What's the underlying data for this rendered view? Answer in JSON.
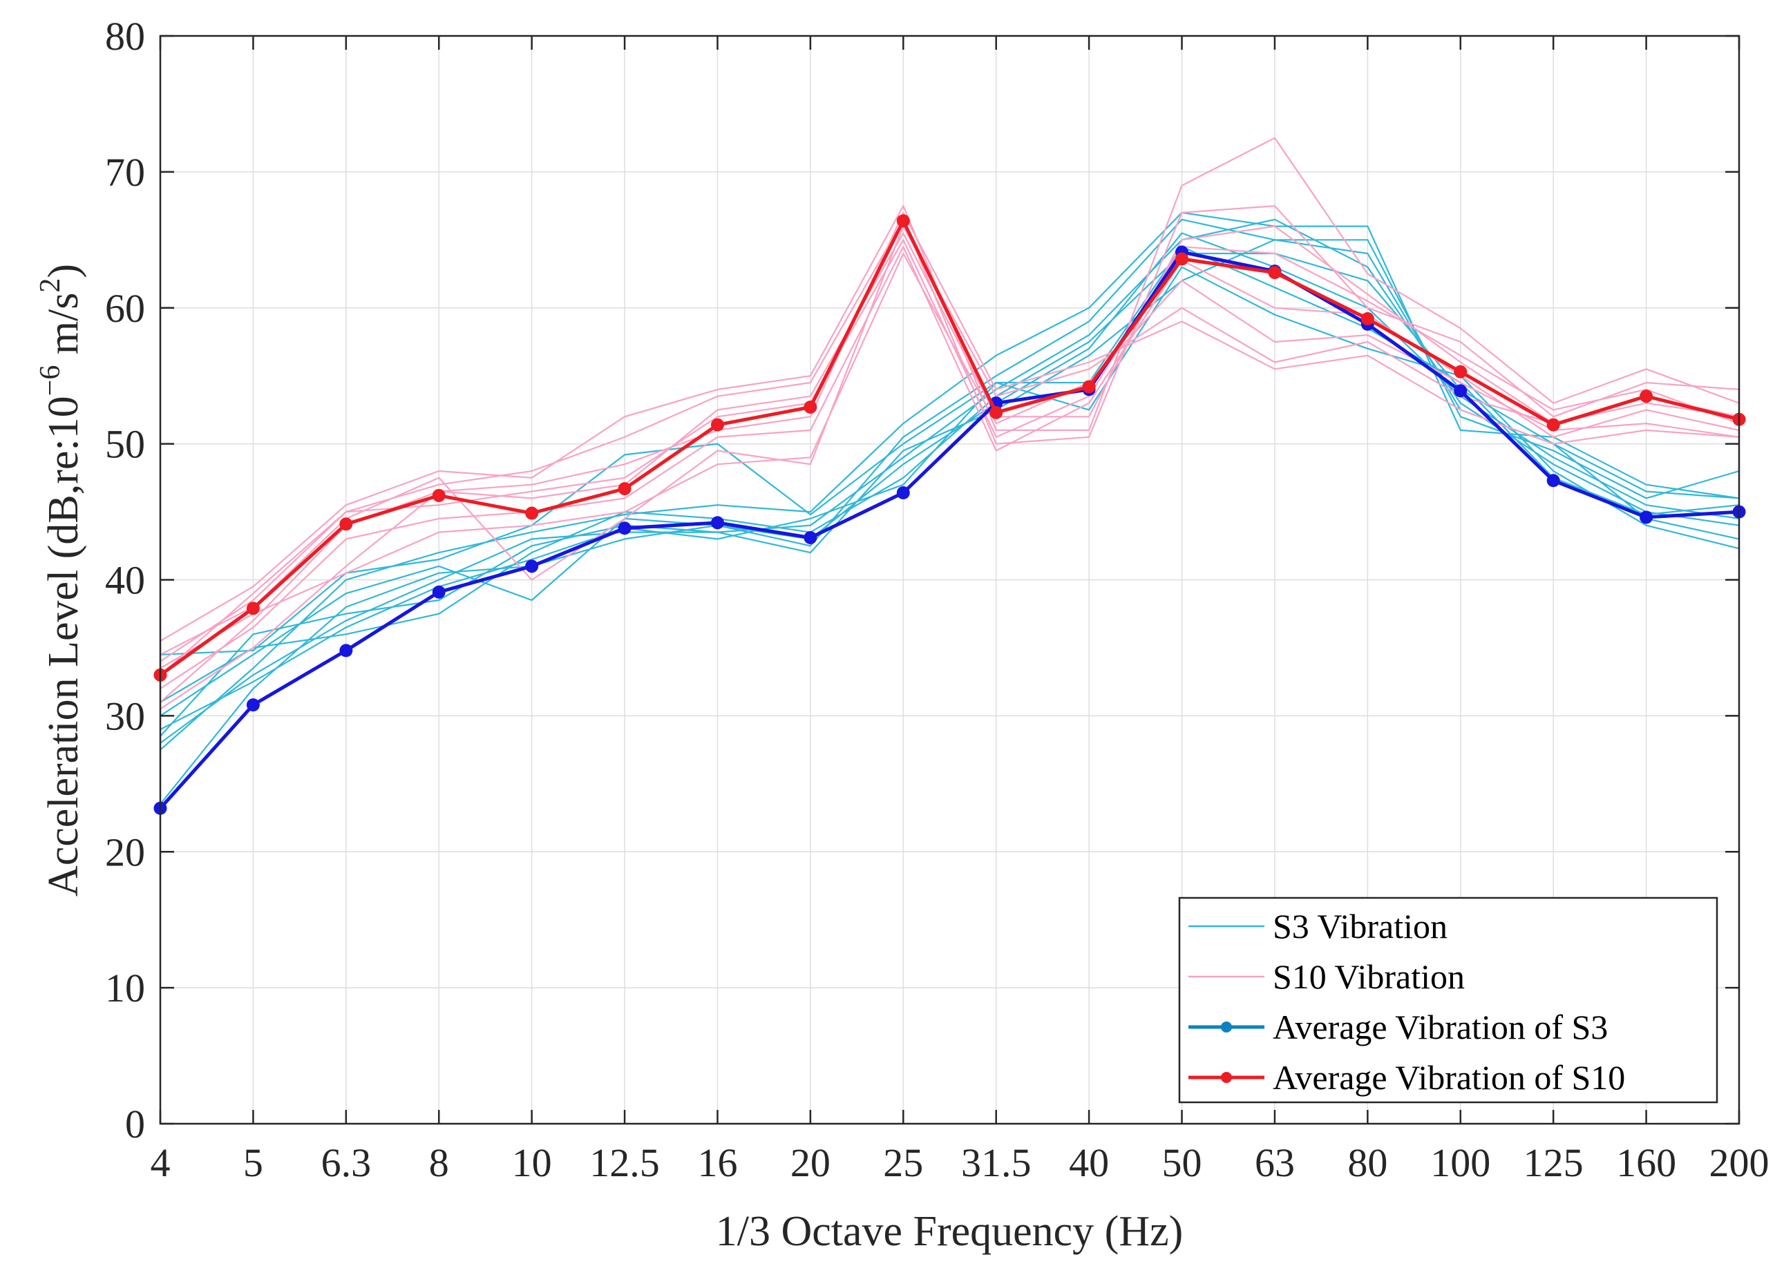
{
  "chart_data": {
    "type": "line",
    "xlabel": "1/3 Octave Frequency (Hz)",
    "ylabel": {
      "prefix": "Acceleration Level (dB,re:10",
      "exp": "−6",
      "mid": " m/s",
      "exp2": "2",
      "suffix": ")"
    },
    "categories": [
      "4",
      "5",
      "6.3",
      "8",
      "10",
      "12.5",
      "16",
      "20",
      "25",
      "31.5",
      "40",
      "50",
      "63",
      "80",
      "100",
      "125",
      "160",
      "200"
    ],
    "ylim": [
      0,
      80
    ],
    "yticks": [
      0,
      10,
      20,
      30,
      40,
      50,
      60,
      70,
      80
    ],
    "grid": true,
    "legend_position": "bottom-right",
    "legend": [
      "S3 Vibration",
      "S10 Vibration",
      "Average Vibration of S3",
      "Average Vibration of S10"
    ],
    "colors": {
      "s3_individual": "#30b8d8",
      "s10_individual": "#f9a2c4",
      "s3_average": "#1616e0",
      "s3_average_legend": "#0a82c4",
      "s10_average": "#ee1c24",
      "axis": "#262626",
      "grid": "#dedede"
    },
    "series": [
      {
        "name": "Average Vibration of S3",
        "role": "s3_average",
        "values": [
          23.2,
          30.8,
          34.8,
          39.1,
          41.0,
          43.8,
          44.2,
          43.1,
          46.4,
          53.0,
          54.0,
          64.1,
          62.7,
          58.8,
          53.9,
          47.3,
          44.6,
          45.0
        ]
      },
      {
        "name": "Average Vibration of S10",
        "role": "s10_average",
        "values": [
          33.0,
          37.9,
          44.1,
          46.2,
          44.9,
          46.7,
          51.4,
          52.7,
          66.4,
          52.3,
          54.2,
          63.6,
          62.6,
          59.2,
          55.3,
          51.4,
          53.5,
          51.8
        ]
      }
    ],
    "s3_vibration_runs": [
      [
        27.5,
        33.5,
        40.0,
        42.0,
        43.5,
        44.8,
        45.5,
        45.0,
        51.5,
        56.5,
        60.0,
        67.0,
        66.0,
        66.0,
        51.0,
        50.5,
        47.0,
        46.0
      ],
      [
        30.0,
        34.5,
        39.0,
        41.0,
        38.5,
        44.5,
        44.0,
        42.5,
        50.5,
        55.0,
        59.0,
        66.5,
        65.0,
        65.0,
        52.0,
        49.5,
        46.0,
        48.0
      ],
      [
        28.0,
        33.0,
        37.0,
        40.0,
        43.0,
        43.5,
        43.5,
        44.0,
        49.0,
        54.0,
        58.0,
        65.0,
        66.5,
        63.0,
        53.0,
        48.5,
        45.0,
        44.0
      ],
      [
        31.0,
        35.0,
        36.0,
        37.5,
        42.0,
        45.0,
        44.5,
        43.5,
        47.5,
        53.5,
        57.5,
        64.0,
        64.0,
        62.0,
        54.0,
        50.0,
        44.5,
        43.0
      ],
      [
        34.5,
        34.8,
        40.5,
        41.5,
        44.0,
        49.2,
        50.0,
        44.8,
        50.0,
        54.5,
        52.5,
        63.0,
        59.5,
        57.0,
        55.0,
        48.0,
        44.0,
        42.3
      ],
      [
        23.5,
        32.0,
        38.0,
        40.5,
        41.0,
        43.0,
        44.0,
        43.0,
        48.5,
        53.0,
        57.0,
        65.5,
        63.0,
        60.0,
        53.5,
        49.0,
        45.5,
        44.5
      ],
      [
        28.5,
        36.0,
        37.5,
        38.5,
        42.5,
        44.0,
        43.5,
        42.0,
        49.5,
        52.5,
        56.5,
        62.0,
        65.0,
        64.0,
        52.5,
        50.0,
        46.5,
        46.0
      ],
      [
        29.0,
        32.5,
        36.5,
        39.5,
        41.5,
        43.8,
        43.0,
        44.5,
        47.0,
        54.5,
        54.5,
        64.5,
        61.5,
        58.5,
        54.5,
        47.5,
        44.8,
        45.5
      ]
    ],
    "s10_vibration_runs": [
      [
        35.5,
        39.5,
        45.5,
        48.0,
        47.5,
        52.0,
        54.0,
        55.0,
        67.5,
        51.0,
        51.0,
        69.0,
        72.5,
        62.5,
        58.5,
        53.0,
        55.5,
        53.0
      ],
      [
        34.0,
        38.5,
        45.0,
        47.0,
        48.0,
        50.5,
        53.5,
        54.5,
        66.5,
        50.0,
        50.5,
        67.0,
        67.5,
        60.0,
        57.5,
        52.0,
        54.5,
        54.0
      ],
      [
        31.0,
        37.0,
        44.0,
        46.5,
        46.0,
        47.0,
        52.5,
        53.5,
        65.5,
        52.0,
        52.0,
        65.0,
        66.0,
        61.0,
        56.0,
        51.5,
        53.0,
        52.0
      ],
      [
        32.0,
        36.5,
        43.0,
        44.5,
        45.0,
        46.0,
        50.5,
        51.0,
        64.5,
        49.5,
        53.0,
        63.5,
        60.0,
        59.5,
        55.0,
        50.5,
        52.5,
        51.0
      ],
      [
        33.5,
        37.5,
        40.5,
        43.5,
        44.0,
        45.0,
        48.5,
        49.0,
        64.0,
        51.5,
        54.5,
        62.0,
        57.5,
        58.0,
        54.5,
        51.0,
        51.5,
        50.5
      ],
      [
        34.5,
        38.0,
        44.5,
        47.5,
        40.0,
        44.5,
        49.5,
        48.5,
        66.0,
        53.5,
        55.5,
        60.0,
        56.0,
        57.5,
        53.5,
        51.5,
        53.5,
        52.0
      ],
      [
        30.5,
        35.0,
        41.0,
        46.5,
        47.0,
        48.5,
        51.0,
        52.0,
        67.0,
        54.0,
        56.0,
        59.0,
        55.5,
        56.5,
        52.5,
        50.0,
        51.0,
        50.5
      ],
      [
        33.0,
        39.0,
        45.0,
        45.5,
        46.5,
        47.5,
        52.0,
        53.0,
        65.0,
        50.5,
        53.5,
        64.5,
        64.0,
        60.5,
        56.5,
        52.5,
        54.0,
        51.5
      ]
    ]
  }
}
